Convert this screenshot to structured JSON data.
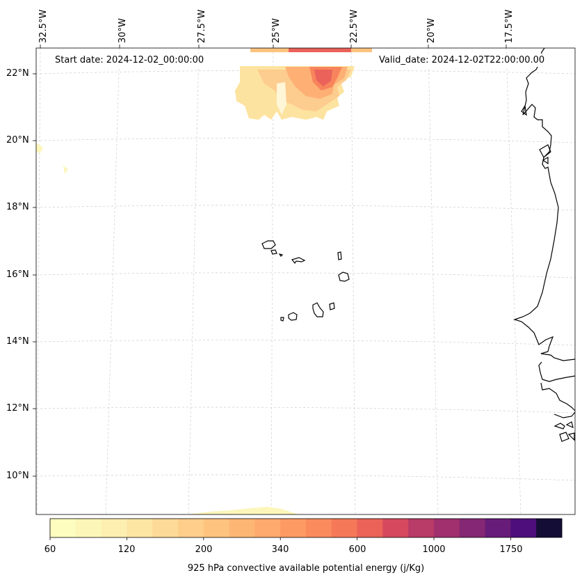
{
  "annotations": {
    "start_date": "Start date: 2024-12-02_00:00:00",
    "valid_date": "Valid_date: 2024-12-02T22:00:00.00"
  },
  "longitude_labels": [
    "32.5°W",
    "30°W",
    "27.5°W",
    "25°W",
    "22.5°W",
    "20°W",
    "17.5°W"
  ],
  "latitude_labels": [
    "22°N",
    "20°N",
    "18°N",
    "16°N",
    "14°N",
    "12°N",
    "10°N"
  ],
  "colorbar": {
    "label": "925 hPa convective available potential energy (j/Kg)",
    "tick_labels": [
      "60",
      "120",
      "200",
      "340",
      "600",
      "1000",
      "1750"
    ],
    "colors": [
      "#fcfdbf",
      "#fcf6b8",
      "#fcefb0",
      "#fde5a4",
      "#fdda97",
      "#fece8a",
      "#fec37f",
      "#feb675",
      "#fea96d",
      "#fd9a64",
      "#fb8a5d",
      "#f57858",
      "#ea6258",
      "#d5485e",
      "#b93b67",
      "#a0306e",
      "#842774",
      "#681c79",
      "#4e0f7a",
      "#140e36"
    ]
  },
  "cape_field_colors": {
    "light": "#fde8a8",
    "mid": "#fdd193",
    "orange": "#feb074",
    "salmon": "#f7845c",
    "red": "#ea6259",
    "faint": "#fcf6bb"
  },
  "map_style": {
    "coastline_color": "#000000",
    "gridline_color": "#cccccc",
    "ocean_color": "#ffffff"
  }
}
